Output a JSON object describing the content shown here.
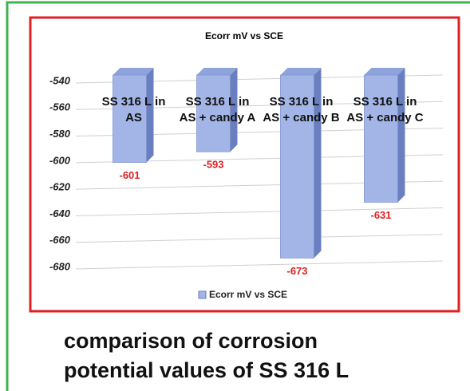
{
  "chart_data": {
    "type": "bar3d",
    "title": "Ecorr mV vs SCE",
    "categories": [
      "SS 316 L in AS",
      "SS 316 L in AS + candy A",
      "SS 316 L in AS + candy B",
      "SS 316 L in AS + candy C"
    ],
    "series": [
      {
        "name": "Ecorr mV vs SCE",
        "color": "#a3b5e6",
        "values": [
          -601,
          -593,
          -673,
          -631
        ]
      }
    ],
    "ylim": [
      -680,
      -540
    ],
    "yticks": [
      -540,
      -560,
      -580,
      -600,
      -620,
      -640,
      -660,
      -680
    ],
    "grid": true
  },
  "caption": [
    "comparison of corrosion",
    "potential values of SS 316 L"
  ]
}
